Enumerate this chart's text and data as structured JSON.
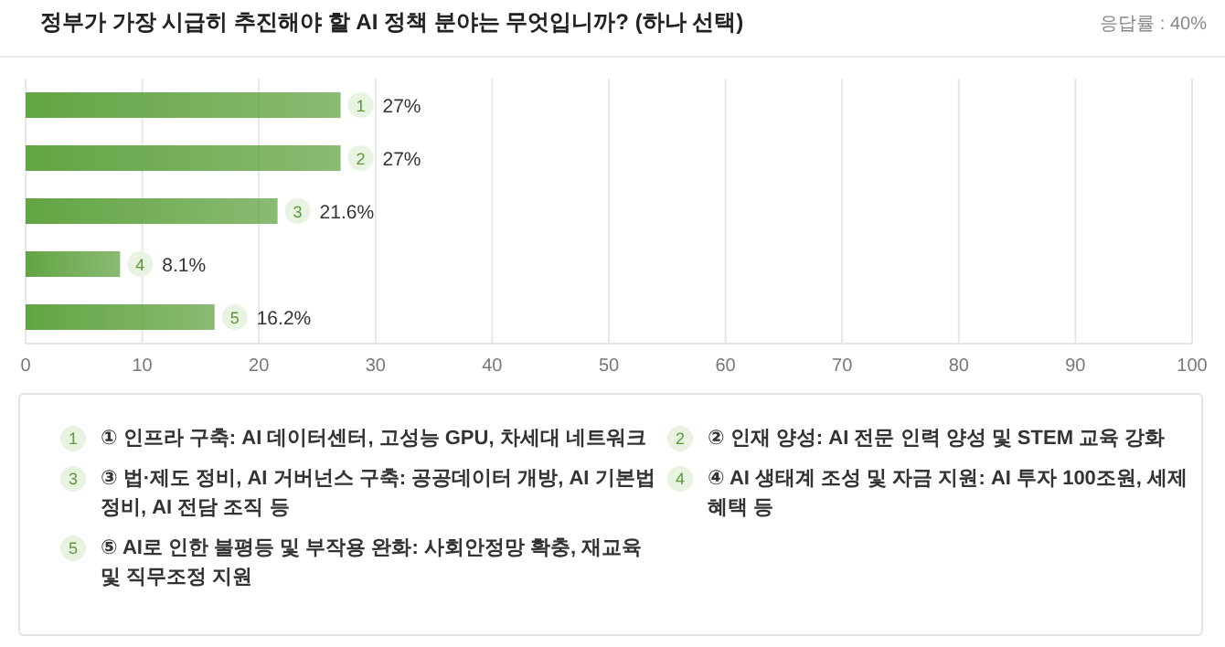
{
  "chart_data": {
    "type": "bar",
    "orientation": "horizontal",
    "title": "정부가 가장 시급히 추진해야 할 AI 정책 분야는 무엇입니까? (하나 선택)",
    "subtitle": "응답률 : 40%",
    "categories": [
      "1",
      "2",
      "3",
      "4",
      "5"
    ],
    "values": [
      27,
      27,
      21.6,
      8.1,
      16.2
    ],
    "value_labels": [
      "27%",
      "27%",
      "21.6%",
      "8.1%",
      "16.2%"
    ],
    "color": "#62a443",
    "xlim": [
      0,
      100
    ],
    "xticks": [
      0,
      10,
      20,
      30,
      40,
      50,
      60,
      70,
      80,
      90,
      100
    ],
    "grid": "x",
    "annotations": [
      "① 인프라 구축: AI 데이터센터, 고성능 GPU, 차세대 네트워크",
      "② 인재 양성: AI 전문 인력 양성 및 STEM 교육 강화",
      "③ 법·제도 정비, AI 거버넌스 구축: 공공데이터 개방, AI 기본법 정비, AI 전담 조직 등",
      "④ AI 생태계 조성 및 자금 지원: AI 투자 100조원, 세제 혜택 등",
      "⑤ AI로 인한 불평등 및 부작용 완화: 사회안정망 확충, 재교육 및 직무조정 지원"
    ]
  }
}
